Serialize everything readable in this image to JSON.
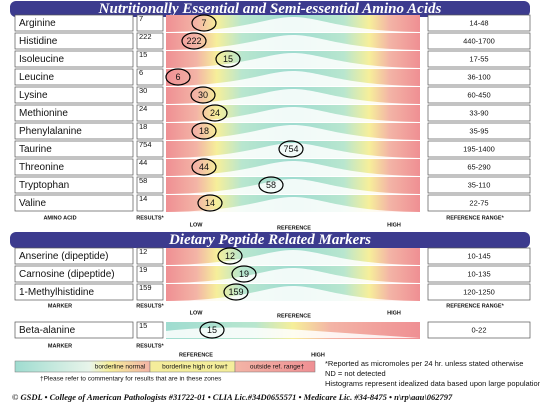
{
  "sections": [
    {
      "title": "Nutritionally Essential and Semi-essential Amino Acids",
      "rows": [
        {
          "name": "Arginine",
          "result": 7,
          "range": "14-48"
        },
        {
          "name": "Histidine",
          "result": 222,
          "range": "440-1700"
        },
        {
          "name": "Isoleucine",
          "result": 15,
          "range": "17-55"
        },
        {
          "name": "Leucine",
          "result": 6,
          "range": "36-100"
        },
        {
          "name": "Lysine",
          "result": 30,
          "range": "60-450"
        },
        {
          "name": "Methionine",
          "result": 24,
          "range": "33-90"
        },
        {
          "name": "Phenylalanine",
          "result": 18,
          "range": "35-95"
        },
        {
          "name": "Taurine",
          "result": 754,
          "range": "195-1400"
        },
        {
          "name": "Threonine",
          "result": 44,
          "range": "65-290"
        },
        {
          "name": "Tryptophan",
          "result": 58,
          "range": "35-110"
        },
        {
          "name": "Valine",
          "result": 14,
          "range": "22-75"
        }
      ],
      "columns": {
        "name": "AMINO ACID",
        "result": "RESULTS*",
        "low": "LOW",
        "reference": "REFERENCE",
        "high": "HIGH",
        "range": "REFERENCE RANGE*"
      }
    },
    {
      "title": "Dietary Peptide Related Markers",
      "rows": [
        {
          "name": "Anserine (dipeptide)",
          "result": 12,
          "range": "10-145"
        },
        {
          "name": "Carnosine (dipeptide)",
          "result": 19,
          "range": "10-135"
        },
        {
          "name": "1-Methylhistidine",
          "result": 159,
          "range": "120-1250"
        }
      ],
      "columns": {
        "name": "MARKER",
        "result": "RESULTS*",
        "low": "LOW",
        "reference": "REFERENCE",
        "high": "HIGH",
        "range": "REFERENCE RANGE*"
      }
    },
    {
      "rows": [
        {
          "name": "Beta-alanine",
          "result": 15,
          "range": "0-22"
        }
      ],
      "columns": {
        "name": "MARKER",
        "result": "RESULTS*",
        "reference": "REFERENCE",
        "high": "HIGH"
      }
    }
  ],
  "legend": {
    "items": [
      "borderline normal",
      "borderline high or low†",
      "outside ref. range†"
    ],
    "note": "†Please refer to commentary for results that are in these zones"
  },
  "notes": [
    "*Reported as micromoles per 24 hr. unless stated otherwise",
    "ND = not detected",
    "Histograms represent idealized data based upon large populations"
  ],
  "footer": "© GSDL • College of American Pathologists #31722-01 • CLIA Lic.#34D0655571 • Medicare Lic. #34-8475 •  n\\rp\\aau\\062797"
}
